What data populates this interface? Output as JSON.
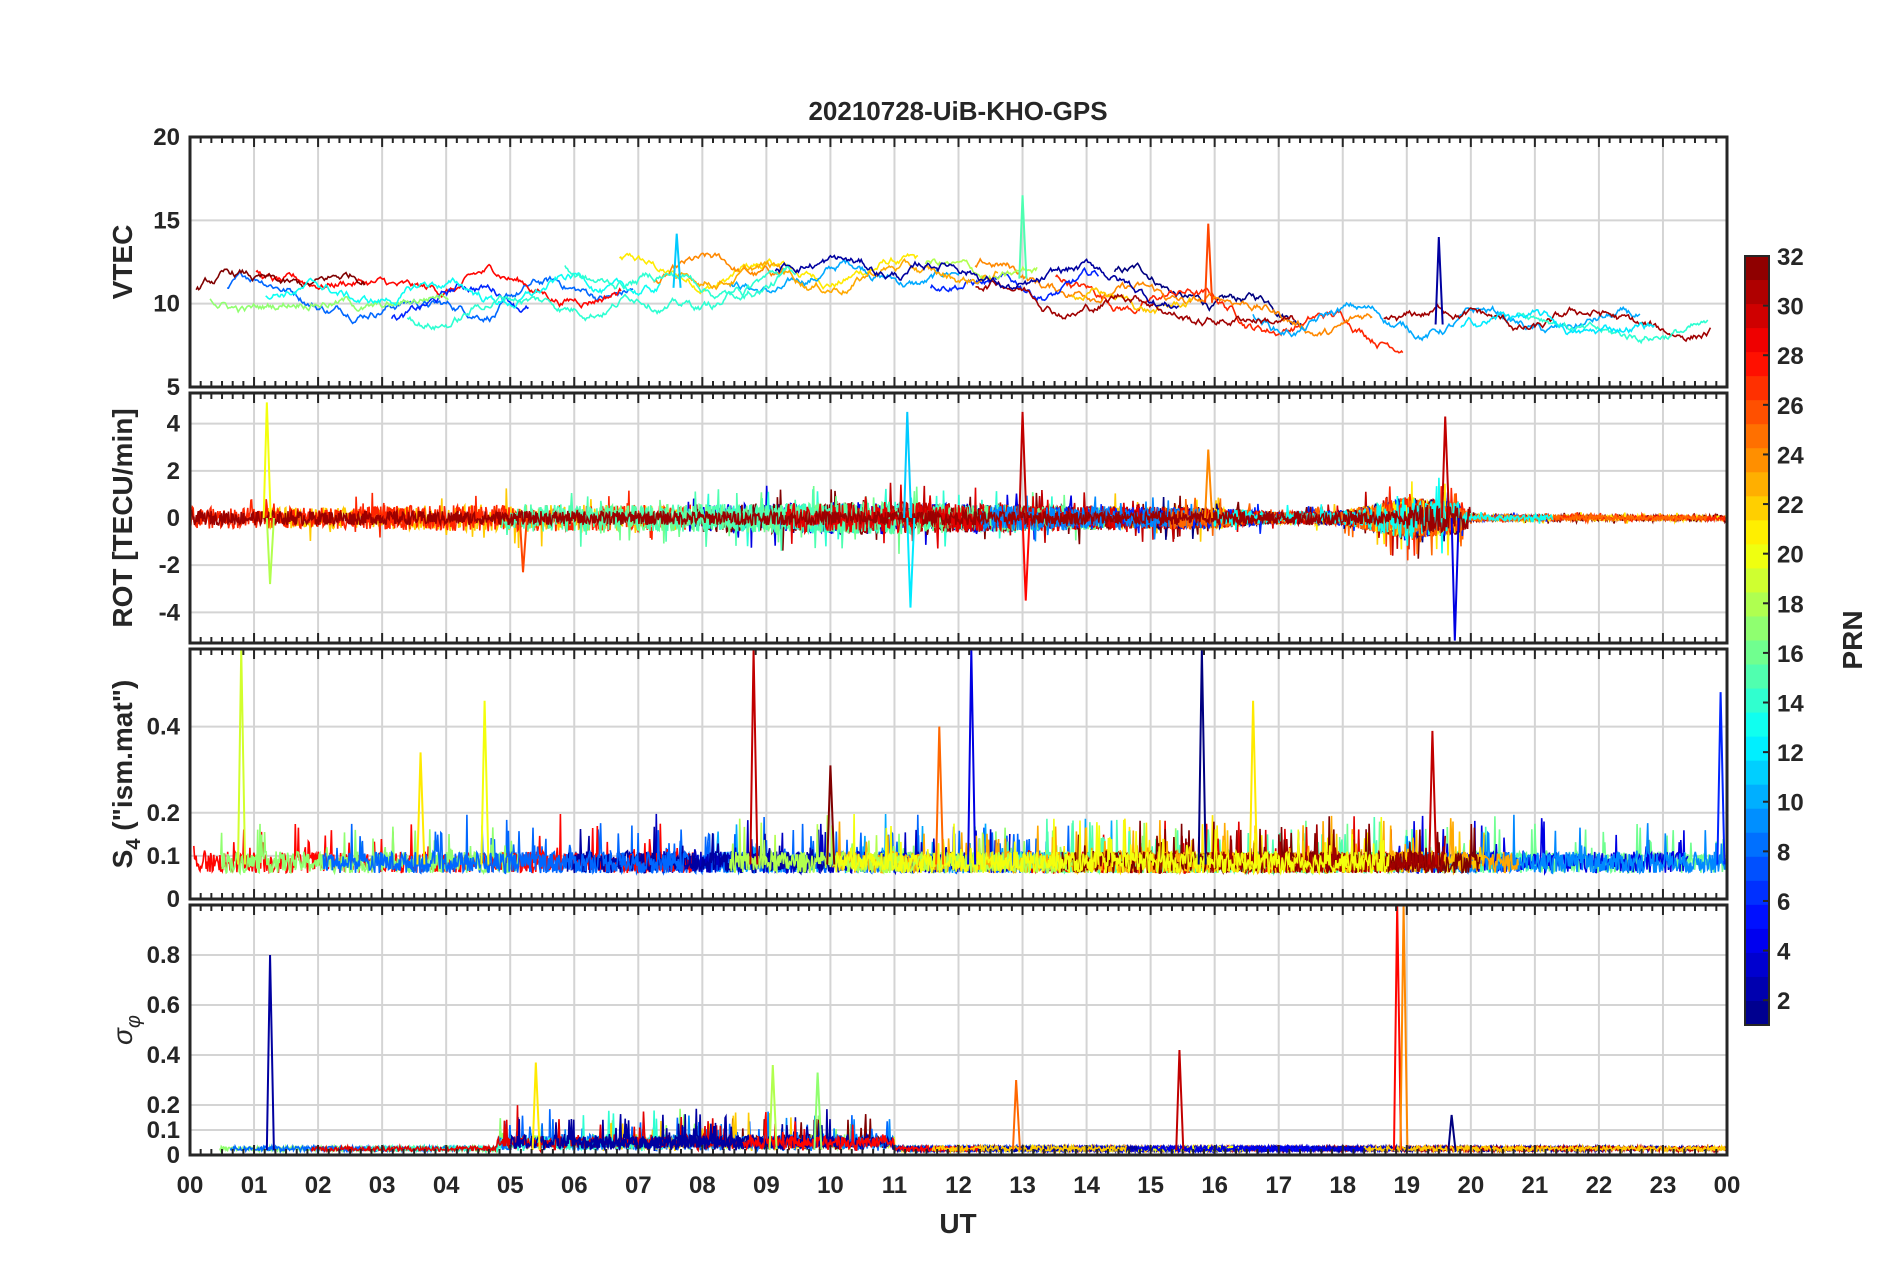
{
  "chart_data": {
    "title": "20210728-UiB-KHO-GPS",
    "type": "line",
    "x_label": "UT",
    "x_range": [
      0,
      24
    ],
    "x_ticks": [
      "00",
      "01",
      "02",
      "03",
      "04",
      "05",
      "06",
      "07",
      "08",
      "09",
      "10",
      "11",
      "12",
      "13",
      "14",
      "15",
      "16",
      "17",
      "18",
      "19",
      "20",
      "21",
      "22",
      "23",
      "00"
    ],
    "colorbar": {
      "label": "PRN",
      "range": [
        1,
        32
      ],
      "ticks": [
        "2",
        "4",
        "6",
        "8",
        "10",
        "12",
        "14",
        "16",
        "18",
        "20",
        "22",
        "24",
        "26",
        "28",
        "30",
        "32"
      ],
      "colormap": "jet"
    },
    "panels": [
      {
        "id": "vtec",
        "ylabel": "VTEC",
        "ylim": [
          5,
          20
        ],
        "yticks": [
          "5",
          "10",
          "15",
          "20"
        ],
        "description_values": {
          "baseline": [
            [
              0,
              10.5
            ],
            [
              4,
              10.5
            ],
            [
              8,
              11
            ],
            [
              11,
              12
            ],
            [
              13,
              11.5
            ],
            [
              16,
              10
            ],
            [
              17,
              9
            ],
            [
              20,
              8.7
            ],
            [
              24,
              7.8
            ]
          ],
          "spread": 1.4
        },
        "peaks": [
          [
            13.0,
            16.5
          ],
          [
            15.9,
            14.8
          ],
          [
            19.5,
            14
          ],
          [
            7.6,
            14.2
          ]
        ]
      },
      {
        "id": "rot",
        "ylabel": "ROT [TECU/min]",
        "ylim": [
          -5.3,
          5.3
        ],
        "yticks": [
          "-4",
          "-2",
          "0",
          "2",
          "4"
        ],
        "description_values": {
          "amplitude_profile": [
            [
              0,
              0.45
            ],
            [
              2,
              0.45
            ],
            [
              5,
              0.6
            ],
            [
              7,
              0.55
            ],
            [
              11,
              0.7
            ],
            [
              13,
              0.55
            ],
            [
              16,
              0.45
            ],
            [
              17,
              0.25
            ],
            [
              18,
              0.3
            ],
            [
              19,
              0.9
            ],
            [
              19.8,
              0.7
            ],
            [
              20,
              0.12
            ],
            [
              24,
              0.1
            ]
          ]
        },
        "peaks": [
          [
            1.2,
            4.9
          ],
          [
            1.25,
            -2.8
          ],
          [
            11.2,
            4.5
          ],
          [
            11.25,
            -3.8
          ],
          [
            13.0,
            4.5
          ],
          [
            13.05,
            -3.5
          ],
          [
            19.6,
            4.3
          ],
          [
            19.75,
            -5.2
          ],
          [
            5.2,
            -2.3
          ],
          [
            15.9,
            2.9
          ]
        ]
      },
      {
        "id": "s4",
        "ylabel": "S4 (\"ism.mat\")",
        "ylabel_main": "S",
        "ylabel_sub": "4",
        "ylabel_rest": " (\"ism.mat\")",
        "ylim": [
          0,
          0.58
        ],
        "yticks": [
          "0",
          "0.1",
          "0.2",
          "0.4"
        ],
        "description_values": {
          "baseline": 0.08,
          "spread": 0.04
        },
        "peaks": [
          [
            0.8,
            0.58
          ],
          [
            4.6,
            0.46
          ],
          [
            8.8,
            0.58
          ],
          [
            12.2,
            0.58
          ],
          [
            15.8,
            0.58
          ],
          [
            16.6,
            0.46
          ],
          [
            11.7,
            0.4
          ],
          [
            19.4,
            0.39
          ],
          [
            3.6,
            0.34
          ],
          [
            10.0,
            0.31
          ],
          [
            23.9,
            0.48
          ]
        ]
      },
      {
        "id": "sigma_phi",
        "ylabel": "σ φ",
        "ylabel_main": "σ",
        "ylabel_sub": "φ",
        "ylim": [
          0,
          1.0
        ],
        "yticks": [
          "0",
          "0.1",
          "0.2",
          "0.4",
          "0.6",
          "0.8"
        ],
        "description_values": {
          "baseline": 0.02
        },
        "peaks": [
          [
            1.25,
            0.8
          ],
          [
            18.85,
            1.0
          ],
          [
            18.95,
            1.0
          ],
          [
            15.45,
            0.42
          ],
          [
            5.4,
            0.37
          ],
          [
            9.1,
            0.36
          ],
          [
            9.8,
            0.33
          ],
          [
            12.9,
            0.3
          ],
          [
            19.7,
            0.16
          ]
        ]
      }
    ]
  }
}
